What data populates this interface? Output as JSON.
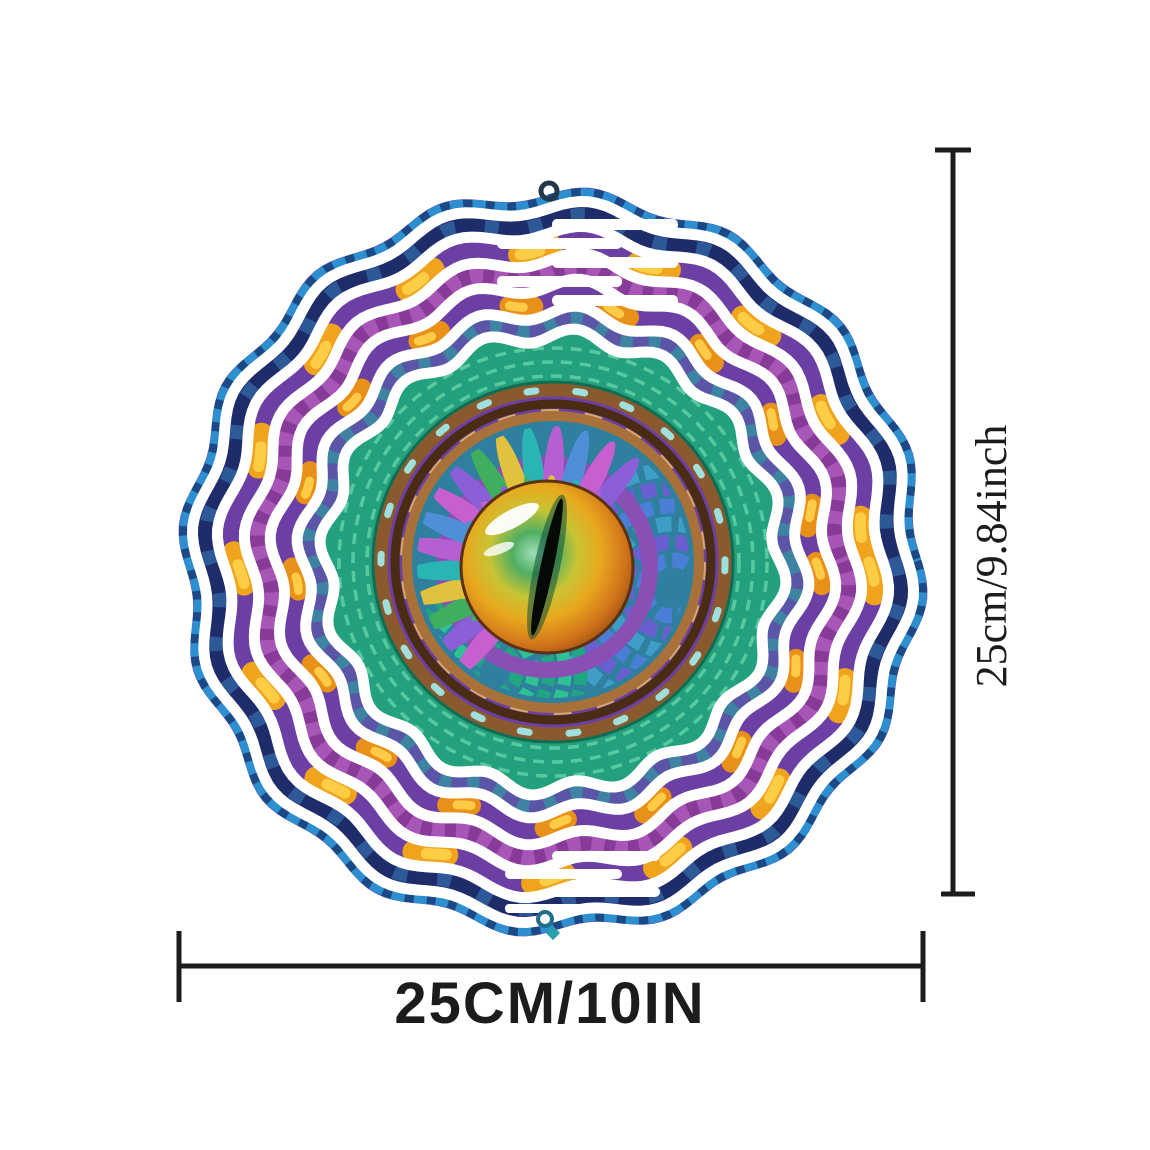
{
  "annotations": {
    "height_label": "25cm/9.84inch",
    "width_label": "25CM/10IN"
  },
  "colors": {
    "background": "#ffffff",
    "measurement": "#1c1c1c",
    "base_purple": "#6b3fa3",
    "rim_blue": "#2e8fd0",
    "rim_navy": "#14316e",
    "navy_band": "#1e2c6a",
    "gold": "#f0a41e",
    "gold_deep": "#e89018",
    "gold_bright": "#ffd24a",
    "magenta": "#a855b8",
    "inner_band": "#5b55a8",
    "green_ring": "#23a07d",
    "green_light": "#62d1a6",
    "bronze": "#8a5a2e",
    "bronze_light": "#a8713a",
    "gem_teal": "#9fe0dc",
    "eye_background": "#2f7f9e",
    "scale_blue": "#4a7fd8",
    "scale_teal": "#21a583",
    "lid_purple": "#8a4fb5",
    "pupil_black": "#050a06",
    "white_cut": "#ffffff",
    "hook": "#22384a",
    "pendant": "#1f6f8a"
  }
}
